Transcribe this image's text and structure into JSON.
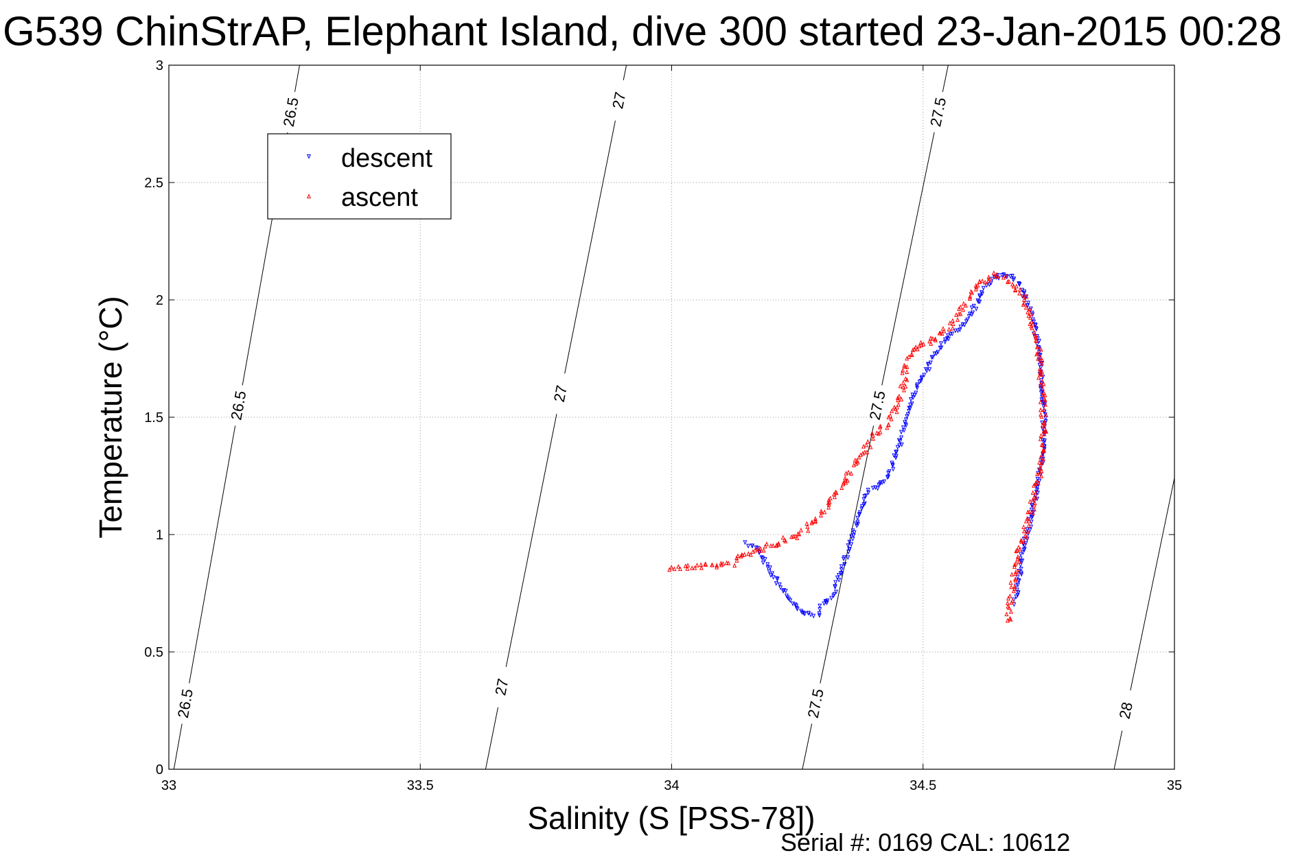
{
  "chart_data": {
    "type": "scatter",
    "title": "G539 ChinStrAP, Elephant Island, dive 300 started 23-Jan-2015 00:28",
    "xlabel": "Salinity (S [PSS-78])",
    "ylabel": "Temperature (°C)",
    "footer": "Serial #: 0169 CAL: 10612",
    "xlim": [
      33,
      35
    ],
    "ylim": [
      0,
      3
    ],
    "xticks": [
      "33",
      "33.5",
      "34",
      "34.5",
      "35"
    ],
    "yticks": [
      "0",
      "0.5",
      "1",
      "1.5",
      "2",
      "2.5",
      "3"
    ],
    "grid": true,
    "legend_position": "top-left",
    "density_contours": [
      {
        "level": "26.5",
        "s_at_t0": 33.01,
        "s_at_t3": 33.26,
        "labels": [
          {
            "text": "26.5",
            "t": 0.28
          },
          {
            "text": "26.5",
            "t": 1.55
          },
          {
            "text": "26.5",
            "t": 2.8
          }
        ]
      },
      {
        "level": "27",
        "s_at_t0": 33.63,
        "s_at_t3": 33.91,
        "labels": [
          {
            "text": "27",
            "t": 0.35
          },
          {
            "text": "27",
            "t": 1.6
          },
          {
            "text": "27",
            "t": 2.85
          }
        ]
      },
      {
        "level": "27.5",
        "s_at_t0": 34.26,
        "s_at_t3": 34.55,
        "labels": [
          {
            "text": "27.5",
            "t": 0.28
          },
          {
            "text": "27.5",
            "t": 1.55
          },
          {
            "text": "27.5",
            "t": 2.8
          }
        ]
      },
      {
        "level": "28",
        "s_at_t0": 34.88,
        "s_at_t3": 35.17,
        "labels": [
          {
            "text": "28",
            "t": 0.25
          },
          {
            "text": "28",
            "t": 1.5
          }
        ]
      }
    ],
    "series": [
      {
        "name": "descent",
        "color": "#0000ff",
        "marker": "triangle-down",
        "path": [
          [
            34.15,
            0.96
          ],
          [
            34.17,
            0.94
          ],
          [
            34.18,
            0.9
          ],
          [
            34.19,
            0.86
          ],
          [
            34.2,
            0.83
          ],
          [
            34.24,
            0.71
          ],
          [
            34.25,
            0.68
          ],
          [
            34.27,
            0.66
          ],
          [
            34.29,
            0.66
          ],
          [
            34.3,
            0.7
          ],
          [
            34.32,
            0.74
          ],
          [
            34.33,
            0.79
          ],
          [
            34.34,
            0.85
          ],
          [
            34.35,
            0.93
          ],
          [
            34.36,
            1.0
          ],
          [
            34.37,
            1.07
          ],
          [
            34.38,
            1.13
          ],
          [
            34.39,
            1.18
          ],
          [
            34.41,
            1.21
          ],
          [
            34.43,
            1.24
          ],
          [
            34.44,
            1.3
          ],
          [
            34.45,
            1.36
          ],
          [
            34.46,
            1.44
          ],
          [
            34.47,
            1.52
          ],
          [
            34.48,
            1.59
          ],
          [
            34.49,
            1.65
          ],
          [
            34.51,
            1.71
          ],
          [
            34.52,
            1.76
          ],
          [
            34.54,
            1.82
          ],
          [
            34.56,
            1.86
          ],
          [
            34.58,
            1.9
          ],
          [
            34.6,
            1.96
          ],
          [
            34.62,
            2.04
          ],
          [
            34.64,
            2.09
          ],
          [
            34.66,
            2.11
          ],
          [
            34.68,
            2.1
          ],
          [
            34.69,
            2.07
          ],
          [
            34.7,
            2.03
          ],
          [
            34.71,
            1.97
          ],
          [
            34.72,
            1.9
          ],
          [
            34.73,
            1.8
          ],
          [
            34.735,
            1.68
          ],
          [
            34.74,
            1.55
          ],
          [
            34.74,
            1.45
          ],
          [
            34.74,
            1.38
          ],
          [
            34.735,
            1.31
          ],
          [
            34.73,
            1.22
          ],
          [
            34.72,
            1.12
          ],
          [
            34.71,
            1.03
          ],
          [
            34.7,
            0.95
          ],
          [
            34.695,
            0.88
          ],
          [
            34.69,
            0.8
          ],
          [
            34.685,
            0.74
          ],
          [
            34.68,
            0.7
          ]
        ],
        "jitter_s": 0.004,
        "jitter_t": 0.008
      },
      {
        "name": "ascent",
        "color": "#ff0000",
        "marker": "triangle-up",
        "path": [
          [
            34.0,
            0.86
          ],
          [
            34.03,
            0.86
          ],
          [
            34.06,
            0.86
          ],
          [
            34.09,
            0.87
          ],
          [
            34.12,
            0.88
          ],
          [
            34.15,
            0.92
          ],
          [
            34.18,
            0.94
          ],
          [
            34.21,
            0.96
          ],
          [
            34.24,
            0.99
          ],
          [
            34.27,
            1.03
          ],
          [
            34.29,
            1.07
          ],
          [
            34.31,
            1.12
          ],
          [
            34.33,
            1.18
          ],
          [
            34.35,
            1.25
          ],
          [
            34.37,
            1.32
          ],
          [
            34.39,
            1.38
          ],
          [
            34.41,
            1.44
          ],
          [
            34.43,
            1.48
          ],
          [
            34.45,
            1.56
          ],
          [
            34.46,
            1.63
          ],
          [
            34.465,
            1.71
          ],
          [
            34.47,
            1.75
          ],
          [
            34.48,
            1.79
          ],
          [
            34.5,
            1.81
          ],
          [
            34.53,
            1.84
          ],
          [
            34.56,
            1.9
          ],
          [
            34.58,
            1.97
          ],
          [
            34.6,
            2.04
          ],
          [
            34.62,
            2.08
          ],
          [
            34.64,
            2.11
          ],
          [
            34.66,
            2.09
          ],
          [
            34.68,
            2.06
          ],
          [
            34.7,
            2.01
          ],
          [
            34.71,
            1.95
          ],
          [
            34.72,
            1.88
          ],
          [
            34.73,
            1.78
          ],
          [
            34.735,
            1.66
          ],
          [
            34.74,
            1.53
          ],
          [
            34.74,
            1.43
          ],
          [
            34.735,
            1.34
          ],
          [
            34.73,
            1.24
          ],
          [
            34.72,
            1.14
          ],
          [
            34.71,
            1.06
          ],
          [
            34.7,
            0.99
          ],
          [
            34.69,
            0.92
          ],
          [
            34.685,
            0.86
          ],
          [
            34.68,
            0.8
          ],
          [
            34.675,
            0.74
          ],
          [
            34.67,
            0.68
          ],
          [
            34.668,
            0.62
          ]
        ],
        "jitter_s": 0.006,
        "jitter_t": 0.012
      }
    ]
  }
}
